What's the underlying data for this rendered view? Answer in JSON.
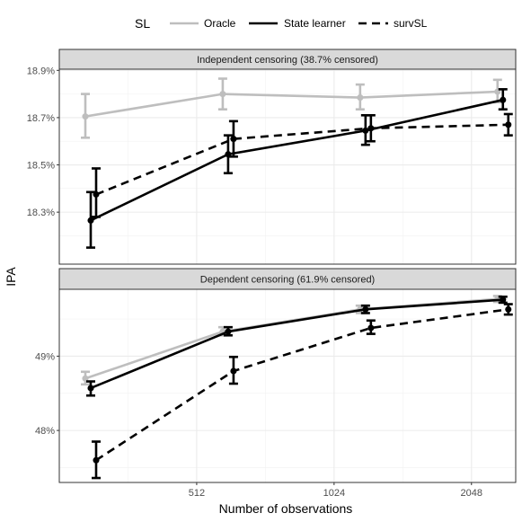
{
  "chart_data": {
    "type": "line",
    "xlabel": "Number of observations",
    "ylabel": "IPA",
    "x_scale": "log2",
    "xlim": [
      256,
      2560
    ],
    "x_ticks": [
      {
        "value": 512,
        "label": "512"
      },
      {
        "value": 1024,
        "label": "1024"
      },
      {
        "value": 2048,
        "label": "2048"
      }
    ],
    "grid": true,
    "legend": {
      "title": "SL",
      "position": "top",
      "entries": [
        {
          "name": "Oracle",
          "color": "#bebebe",
          "dash": "solid"
        },
        {
          "name": "State learner",
          "color": "#000000",
          "dash": "solid"
        },
        {
          "name": "survSL",
          "color": "#000000",
          "dash": "dashed"
        }
      ]
    },
    "panels": [
      {
        "title": "Independent censoring (38.7% censored)",
        "ylim": [
          18.08,
          18.905
        ],
        "y_ticks": [
          {
            "value": 18.3,
            "label": "18.3%"
          },
          {
            "value": 18.5,
            "label": "18.5%"
          },
          {
            "value": 18.7,
            "label": "18.7%"
          },
          {
            "value": 18.9,
            "label": "18.9%"
          }
        ],
        "x": [
          300,
          600,
          1200,
          2400
        ],
        "series": [
          {
            "name": "Oracle",
            "y": [
              18.705,
              18.8,
              18.785,
              18.81
            ],
            "lower": [
              18.615,
              18.735,
              18.735,
              18.765
            ],
            "upper": [
              18.8,
              18.865,
              18.84,
              18.86
            ]
          },
          {
            "name": "State learner",
            "y": [
              18.265,
              18.545,
              18.645,
              18.775
            ],
            "lower": [
              18.15,
              18.465,
              18.585,
              18.735
            ],
            "upper": [
              18.385,
              18.625,
              18.71,
              18.82
            ]
          },
          {
            "name": "survSL",
            "y": [
              18.375,
              18.61,
              18.655,
              18.67
            ],
            "lower": [
              18.28,
              18.535,
              18.6,
              18.625
            ],
            "upper": [
              18.485,
              18.685,
              18.71,
              18.715
            ]
          }
        ]
      },
      {
        "title": "Dependent censoring (61.9% censored)",
        "ylim": [
          47.3,
          49.9
        ],
        "y_ticks": [
          {
            "value": 48,
            "label": "48%"
          },
          {
            "value": 49,
            "label": "49%"
          }
        ],
        "x": [
          300,
          600,
          1200,
          2400
        ],
        "series": [
          {
            "name": "Oracle",
            "y": [
              48.7,
              49.33,
              49.63,
              49.77
            ],
            "lower": [
              48.62,
              49.28,
              49.58,
              49.73
            ],
            "upper": [
              48.79,
              49.39,
              49.68,
              49.81
            ]
          },
          {
            "name": "State learner",
            "y": [
              48.57,
              49.33,
              49.63,
              49.76
            ],
            "lower": [
              48.47,
              49.28,
              49.58,
              49.72
            ],
            "upper": [
              48.66,
              49.39,
              49.68,
              49.8
            ]
          },
          {
            "name": "survSL",
            "y": [
              47.6,
              48.8,
              49.38,
              49.63
            ],
            "lower": [
              47.36,
              48.63,
              49.3,
              49.56
            ],
            "upper": [
              47.85,
              48.99,
              49.48,
              49.7
            ]
          }
        ]
      }
    ]
  }
}
